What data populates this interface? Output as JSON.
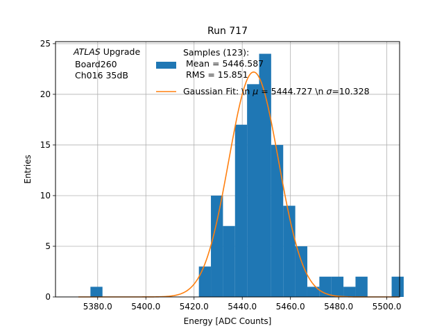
{
  "chart_data": {
    "type": "bar",
    "title": "Run 717",
    "xlabel": "Energy [ADC Counts]",
    "ylabel": "Entries",
    "xlim": [
      5362.5,
      5505.3
    ],
    "ylim": [
      0,
      25.2
    ],
    "xticks": [
      5380,
      5400,
      5420,
      5440,
      5460,
      5480,
      5500
    ],
    "xtick_labels": [
      "5380.0",
      "5400.0",
      "5420.0",
      "5440.0",
      "5460.0",
      "5480.0",
      "5500.0"
    ],
    "yticks": [
      0,
      5,
      10,
      15,
      20,
      25
    ],
    "ytick_labels": [
      "0",
      "5",
      "10",
      "15",
      "20",
      "25"
    ],
    "grid": true,
    "annotation": {
      "atlas": "ATLAS",
      "upgrade": " Upgrade",
      "board": "Board260",
      "channel": "Ch016 35dB"
    },
    "histogram": {
      "name": "Samples (123):",
      "legend_lines": [
        "Samples (123):",
        " Mean = 5446.587",
        " RMS = 15.851"
      ],
      "color": "#1f77b4",
      "bin_edges": [
        5372.0,
        5377.0,
        5382.0,
        5387.0,
        5392.0,
        5397.0,
        5402.0,
        5407.0,
        5412.0,
        5417.0,
        5422.0,
        5427.0,
        5432.0,
        5437.0,
        5442.0,
        5447.0,
        5452.0,
        5457.0,
        5462.0,
        5467.0,
        5472.0,
        5477.0,
        5482.0,
        5487.0,
        5492.0,
        5497.0,
        5502.0,
        5507.0
      ],
      "counts": [
        0,
        1,
        0,
        0,
        0,
        0,
        0,
        0,
        0,
        0,
        3,
        10,
        7,
        17,
        21,
        24,
        15,
        9,
        5,
        1,
        2,
        2,
        1,
        2,
        0,
        0,
        2
      ]
    },
    "fit": {
      "name": "Gaussian Fit",
      "legend_prefix": "Gaussian Fit: \\n ",
      "mu_symbol": "μ",
      "mu_value": " = 5444.727 \\n ",
      "sigma_symbol": "σ",
      "sigma_value": "=10.328",
      "color": "#ff7f0e",
      "mu": 5444.727,
      "sigma": 10.328,
      "amplitude": 22.2,
      "x_range": [
        5372.0,
        5505.0
      ]
    }
  }
}
